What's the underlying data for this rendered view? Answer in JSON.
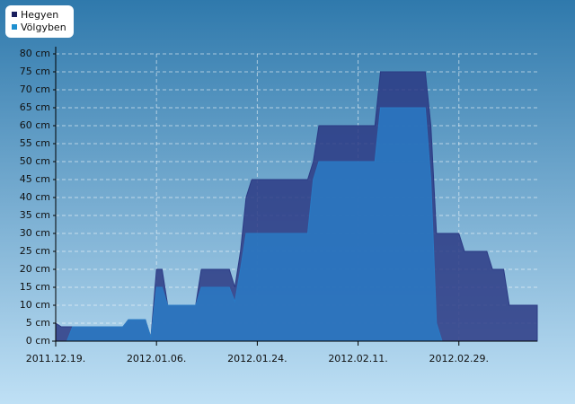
{
  "chart_data": {
    "type": "area",
    "x": [
      "2011-12-19",
      "2011-12-20",
      "2011-12-21",
      "2011-12-22",
      "2011-12-31",
      "2012-01-01",
      "2012-01-04",
      "2012-01-05",
      "2012-01-06",
      "2012-01-07",
      "2012-01-08",
      "2012-01-13",
      "2012-01-14",
      "2012-01-19",
      "2012-01-20",
      "2012-01-21",
      "2012-01-22",
      "2012-01-23",
      "2012-02-02",
      "2012-02-03",
      "2012-02-04",
      "2012-02-05",
      "2012-02-13",
      "2012-02-14",
      "2012-02-15",
      "2012-02-23",
      "2012-02-24",
      "2012-02-25",
      "2012-02-26",
      "2012-02-29",
      "2012-03-01",
      "2012-03-05",
      "2012-03-06",
      "2012-03-08",
      "2012-03-09",
      "2012-03-14"
    ],
    "series": [
      {
        "name": "Hegyen",
        "color": "#2b3a84",
        "legend_color": "#1a1f5e",
        "values": [
          5,
          4,
          4,
          4,
          4,
          6,
          6,
          1,
          20,
          20,
          10,
          10,
          20,
          20,
          15,
          25,
          40,
          45,
          45,
          50,
          60,
          60,
          60,
          60,
          75,
          75,
          60,
          30,
          30,
          30,
          25,
          25,
          20,
          20,
          10,
          10
        ]
      },
      {
        "name": "Völgyben",
        "color": "#2a7ac4",
        "legend_color": "#1e90d0",
        "values": [
          0,
          0,
          0,
          4,
          4,
          6,
          6,
          1,
          15,
          15,
          10,
          10,
          15,
          15,
          11,
          20,
          30,
          30,
          30,
          45,
          50,
          50,
          50,
          50,
          65,
          65,
          45,
          5,
          0,
          0,
          0,
          0,
          0,
          0,
          0,
          0
        ]
      }
    ],
    "xlim": [
      "2011-12-19",
      "2012-03-14"
    ],
    "xticks": [
      {
        "value": "2011-12-19",
        "label": "2011.12.19."
      },
      {
        "value": "2012-01-06",
        "label": "2012.01.06."
      },
      {
        "value": "2012-01-24",
        "label": "2012.01.24."
      },
      {
        "value": "2012-02-11",
        "label": "2012.02.11."
      },
      {
        "value": "2012-02-29",
        "label": "2012.02.29."
      }
    ],
    "ylim": [
      0,
      80
    ],
    "yticks": [
      {
        "value": 0,
        "label": "0 cm"
      },
      {
        "value": 5,
        "label": "5 cm"
      },
      {
        "value": 10,
        "label": "10 cm"
      },
      {
        "value": 15,
        "label": "15 cm"
      },
      {
        "value": 20,
        "label": "20 cm"
      },
      {
        "value": 25,
        "label": "25 cm"
      },
      {
        "value": 30,
        "label": "30 cm"
      },
      {
        "value": 35,
        "label": "35 cm"
      },
      {
        "value": 40,
        "label": "40 cm"
      },
      {
        "value": 45,
        "label": "45 cm"
      },
      {
        "value": 50,
        "label": "50 cm"
      },
      {
        "value": 55,
        "label": "55 cm"
      },
      {
        "value": 60,
        "label": "60 cm"
      },
      {
        "value": 65,
        "label": "65 cm"
      },
      {
        "value": 70,
        "label": "70 cm"
      },
      {
        "value": 75,
        "label": "75 cm"
      },
      {
        "value": 80,
        "label": "80 cm"
      }
    ],
    "grid": true
  }
}
